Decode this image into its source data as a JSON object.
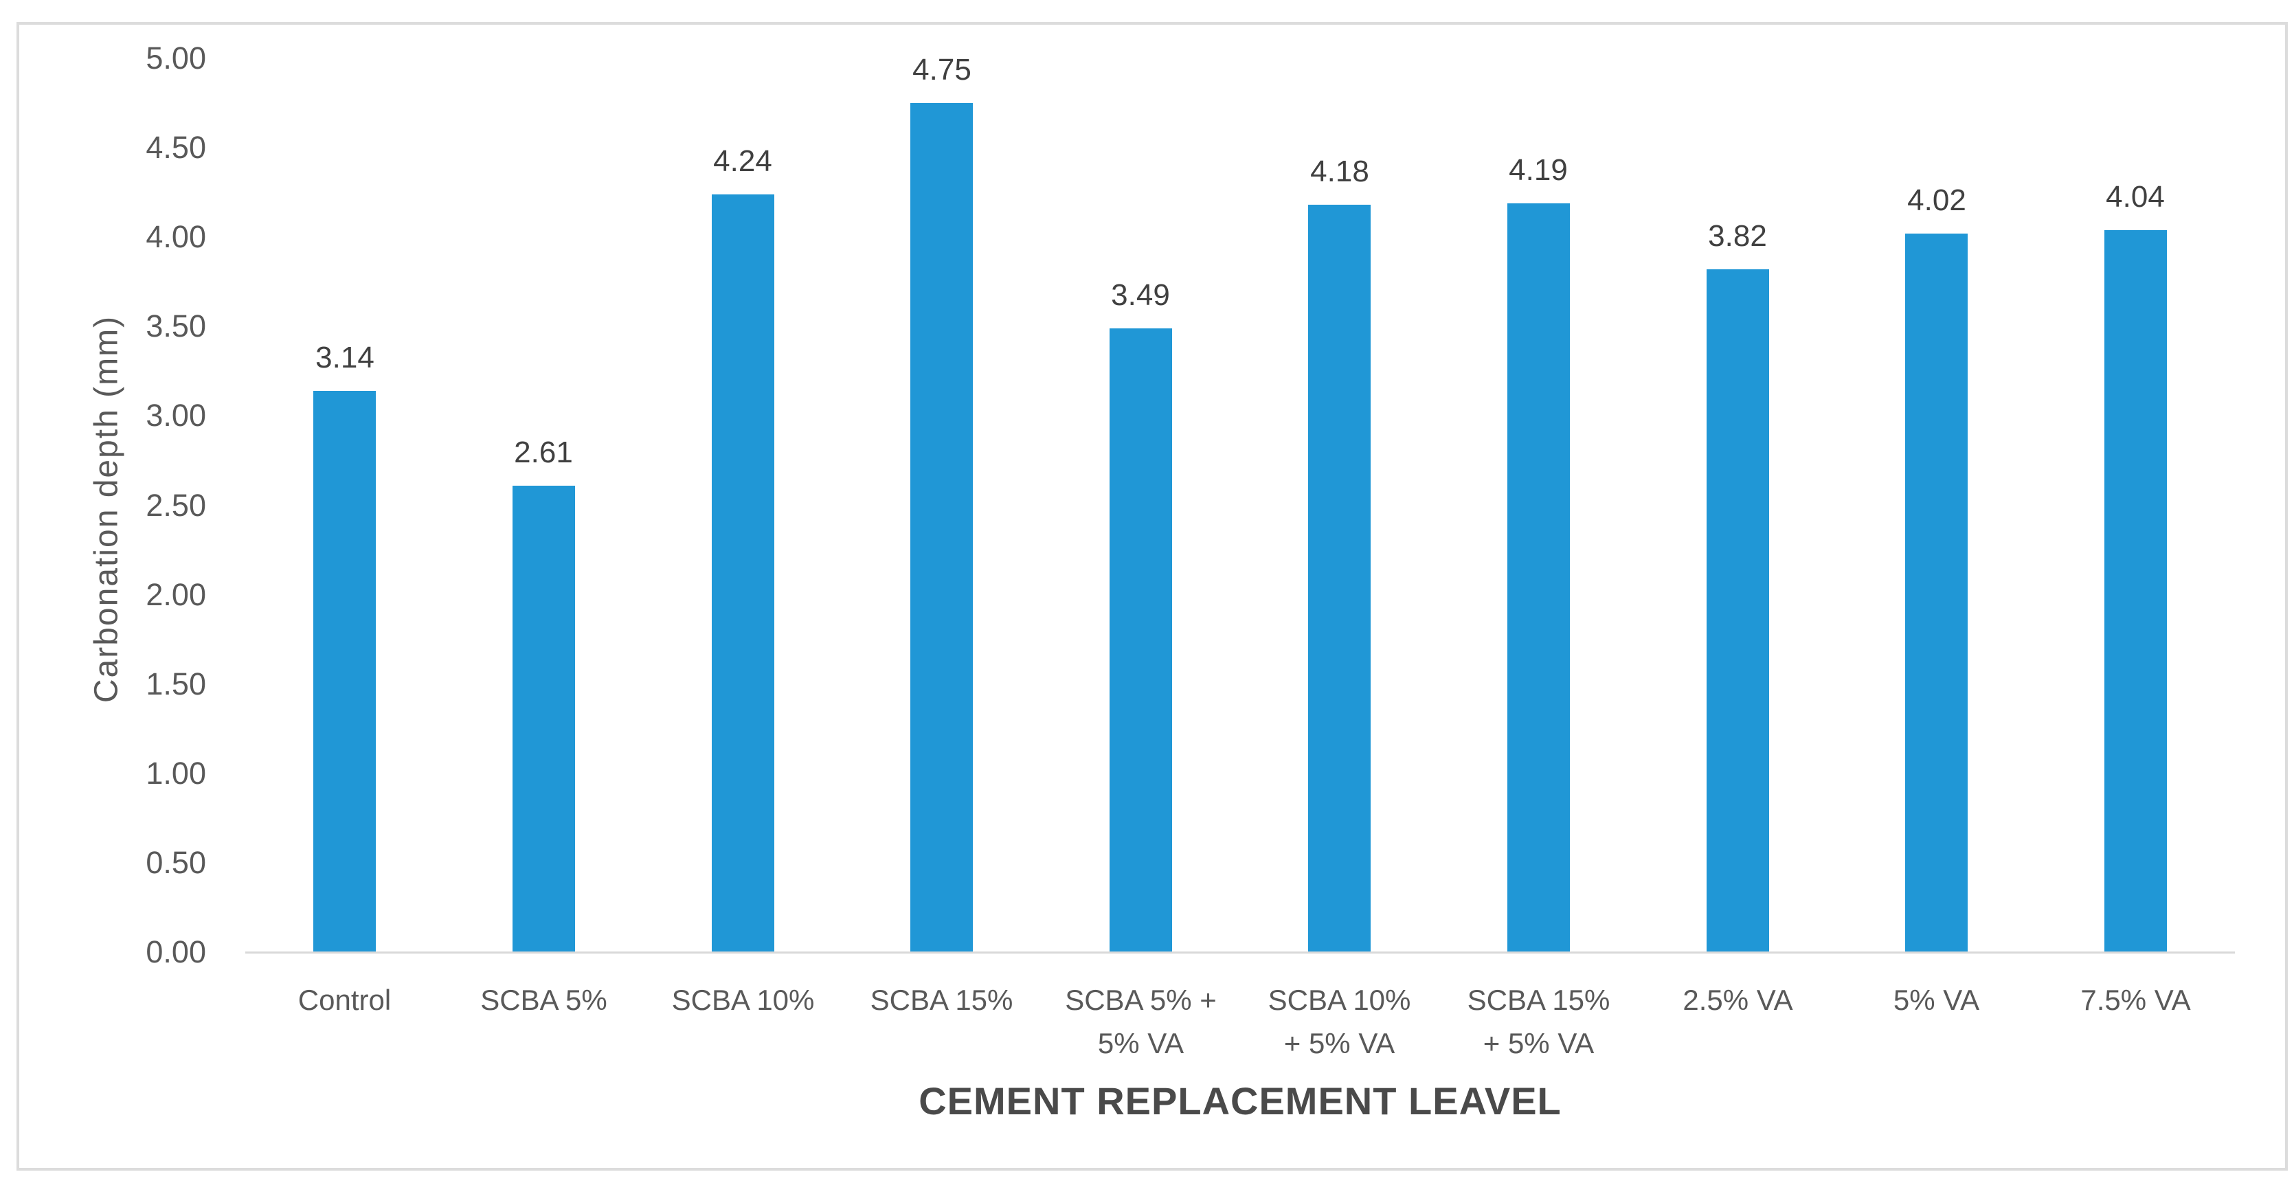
{
  "chart_data": {
    "type": "bar",
    "title": "",
    "xlabel": "CEMENT REPLACEMENT LEAVEL",
    "ylabel": "Carbonation depth (mm)",
    "categories": [
      "Control",
      "SCBA 5%",
      "SCBA 10%",
      "SCBA 15%",
      "SCBA 5% + 5% VA",
      "SCBA 10% + 5% VA",
      "SCBA 15% + 5% VA",
      "2.5% VA",
      "5% VA",
      "7.5% VA"
    ],
    "values": [
      3.14,
      2.61,
      4.24,
      4.75,
      3.49,
      4.18,
      4.19,
      3.82,
      4.02,
      4.04
    ],
    "value_labels": [
      "3.14",
      "2.61",
      "4.24",
      "4.75",
      "3.49",
      "4.18",
      "4.19",
      "3.82",
      "4.02",
      "4.04"
    ],
    "y_ticks": [
      "0.00",
      "0.50",
      "1.00",
      "1.50",
      "2.00",
      "2.50",
      "3.00",
      "3.50",
      "4.00",
      "4.50",
      "5.00"
    ],
    "ylim": [
      0,
      5
    ],
    "y_tick_step": 0.5,
    "grid": false,
    "legend": false,
    "bar_color": "#2097d6",
    "axis_line_color": "#d9d9d9",
    "frame_border_color": "#dcdcdc"
  }
}
